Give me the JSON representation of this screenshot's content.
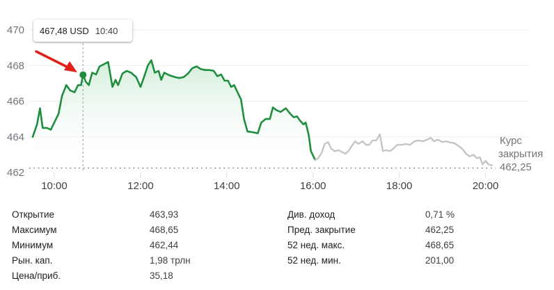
{
  "tooltip": {
    "price": "467,48 USD",
    "time": "10:40"
  },
  "chart_data": {
    "type": "line",
    "y_ticks": [
      "470",
      "468",
      "466",
      "464",
      "462"
    ],
    "x_ticks": [
      "10:00",
      "12:00",
      "14:00",
      "16:00",
      "20:00",
      "18:00"
    ],
    "ylim": [
      462,
      470.3
    ],
    "x_range_hours": [
      9.5,
      20.2
    ],
    "previous_close": {
      "label_line1": "Курс",
      "label_line2": "закрытия",
      "value_text": "462,25",
      "value": 462.25
    },
    "hover": {
      "x": 10.667,
      "y": 467.48
    },
    "colors": {
      "line": "#1e8e3e",
      "after_hours": "#c6c4cb",
      "grid": "#eeeeee",
      "fill_top": "#cdebd5"
    },
    "series": [
      {
        "values": [
          [
            9.5,
            464.0
          ],
          [
            9.6,
            464.7
          ],
          [
            9.67,
            465.6
          ],
          [
            9.73,
            464.5
          ],
          [
            9.83,
            464.5
          ],
          [
            9.92,
            464.4
          ],
          [
            10.0,
            464.8
          ],
          [
            10.1,
            465.3
          ],
          [
            10.18,
            466.3
          ],
          [
            10.28,
            466.9
          ],
          [
            10.37,
            466.6
          ],
          [
            10.47,
            466.5
          ],
          [
            10.55,
            466.9
          ],
          [
            10.62,
            466.9
          ],
          [
            10.667,
            467.48
          ],
          [
            10.73,
            467.1
          ],
          [
            10.8,
            466.9
          ],
          [
            10.88,
            467.6
          ],
          [
            10.97,
            467.5
          ],
          [
            11.05,
            467.95
          ],
          [
            11.13,
            468.05
          ],
          [
            11.25,
            468.2
          ],
          [
            11.35,
            466.8
          ],
          [
            11.42,
            467.2
          ],
          [
            11.48,
            466.9
          ],
          [
            11.58,
            467.55
          ],
          [
            11.68,
            467.7
          ],
          [
            11.78,
            467.6
          ],
          [
            11.9,
            467.35
          ],
          [
            12.0,
            466.8
          ],
          [
            12.08,
            467.35
          ],
          [
            12.17,
            468.0
          ],
          [
            12.25,
            468.3
          ],
          [
            12.33,
            467.6
          ],
          [
            12.42,
            467.7
          ],
          [
            12.48,
            467.2
          ],
          [
            12.55,
            467.6
          ],
          [
            12.67,
            467.45
          ],
          [
            12.8,
            467.35
          ],
          [
            12.9,
            467.3
          ],
          [
            13.0,
            467.35
          ],
          [
            13.1,
            467.55
          ],
          [
            13.2,
            467.85
          ],
          [
            13.3,
            467.95
          ],
          [
            13.4,
            467.8
          ],
          [
            13.5,
            467.75
          ],
          [
            13.6,
            467.75
          ],
          [
            13.7,
            467.7
          ],
          [
            13.78,
            467.4
          ],
          [
            13.87,
            467.5
          ],
          [
            13.95,
            467.15
          ],
          [
            14.03,
            467.15
          ],
          [
            14.1,
            466.8
          ],
          [
            14.17,
            466.9
          ],
          [
            14.25,
            466.5
          ],
          [
            14.33,
            466.1
          ],
          [
            14.4,
            465.0
          ],
          [
            14.48,
            464.3
          ],
          [
            14.62,
            464.25
          ],
          [
            14.72,
            464.2
          ],
          [
            14.8,
            464.8
          ],
          [
            14.9,
            465.0
          ],
          [
            15.0,
            465.0
          ],
          [
            15.07,
            465.65
          ],
          [
            15.15,
            465.5
          ],
          [
            15.25,
            465.4
          ],
          [
            15.37,
            465.6
          ],
          [
            15.47,
            465.3
          ],
          [
            15.55,
            465.1
          ],
          [
            15.63,
            465.15
          ],
          [
            15.7,
            464.9
          ],
          [
            15.78,
            464.7
          ],
          [
            15.83,
            464.8
          ],
          [
            15.9,
            464.1
          ],
          [
            15.95,
            463.2
          ],
          [
            16.0,
            462.95
          ],
          [
            16.05,
            462.7
          ]
        ]
      },
      {
        "values": [
          [
            16.05,
            462.7
          ],
          [
            16.12,
            462.8
          ],
          [
            16.2,
            463.1
          ],
          [
            16.27,
            463.6
          ],
          [
            16.35,
            463.7
          ],
          [
            16.42,
            463.35
          ],
          [
            16.5,
            463.2
          ],
          [
            16.6,
            463.25
          ],
          [
            16.67,
            463.15
          ],
          [
            16.75,
            463.05
          ],
          [
            16.82,
            463.2
          ],
          [
            16.9,
            463.5
          ],
          [
            16.98,
            463.75
          ],
          [
            17.05,
            463.6
          ],
          [
            17.15,
            463.75
          ],
          [
            17.23,
            463.55
          ],
          [
            17.3,
            463.55
          ],
          [
            17.38,
            463.8
          ],
          [
            17.47,
            463.8
          ],
          [
            17.55,
            464.15
          ],
          [
            17.62,
            463.2
          ],
          [
            17.7,
            463.25
          ],
          [
            17.78,
            463.2
          ],
          [
            17.87,
            463.35
          ],
          [
            17.95,
            463.55
          ],
          [
            18.05,
            463.55
          ],
          [
            18.15,
            463.6
          ],
          [
            18.25,
            463.55
          ],
          [
            18.35,
            463.75
          ],
          [
            18.45,
            463.8
          ],
          [
            18.55,
            463.75
          ],
          [
            18.65,
            463.85
          ],
          [
            18.73,
            463.95
          ],
          [
            18.8,
            463.75
          ],
          [
            18.9,
            463.85
          ],
          [
            19.0,
            463.7
          ],
          [
            19.07,
            463.75
          ],
          [
            19.15,
            463.7
          ],
          [
            19.27,
            463.65
          ],
          [
            19.37,
            463.5
          ],
          [
            19.47,
            463.3
          ],
          [
            19.55,
            463.05
          ],
          [
            19.63,
            462.9
          ],
          [
            19.72,
            463.0
          ],
          [
            19.8,
            462.8
          ],
          [
            19.87,
            462.85
          ],
          [
            19.93,
            462.45
          ],
          [
            20.0,
            462.65
          ],
          [
            20.07,
            462.45
          ],
          [
            20.15,
            462.4
          ]
        ]
      }
    ]
  },
  "stats": {
    "left": [
      {
        "label": "Открытие",
        "value": "463,93"
      },
      {
        "label": "Максимум",
        "value": "468,65"
      },
      {
        "label": "Минимум",
        "value": "462,44"
      },
      {
        "label": "Рын. кап.",
        "value": "1,98 трлн"
      },
      {
        "label": "Цена/приб.",
        "value": "35,18"
      }
    ],
    "right": [
      {
        "label": "Див. доход",
        "value": "0,71 %"
      },
      {
        "label": "Пред. закрытие",
        "value": "462,25"
      },
      {
        "label": "52 нед. макс.",
        "value": "468,65"
      },
      {
        "label": "52 нед. мин.",
        "value": "201,00"
      }
    ]
  }
}
